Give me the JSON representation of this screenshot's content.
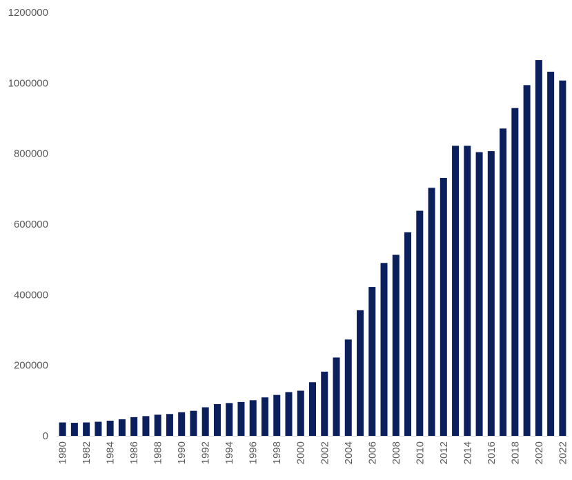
{
  "chart_data": {
    "type": "bar",
    "title": "",
    "xlabel": "",
    "ylabel": "",
    "ylim": [
      0,
      1200000
    ],
    "yticks": [
      "0",
      "200000",
      "400000",
      "600000",
      "800000",
      "1000000",
      "1200000"
    ],
    "grid": false,
    "legend": "none",
    "bar_color": "#0b1f5c",
    "tick_color": "#595959",
    "categories": [
      "1980",
      "1981",
      "1982",
      "1983",
      "1984",
      "1985",
      "1986",
      "1987",
      "1988",
      "1989",
      "1990",
      "1991",
      "1992",
      "1993",
      "1994",
      "1995",
      "1996",
      "1997",
      "1998",
      "1999",
      "2000",
      "2001",
      "2002",
      "2003",
      "2004",
      "2005",
      "2006",
      "2007",
      "2008",
      "2009",
      "2010",
      "2011",
      "2012",
      "2013",
      "2014",
      "2015",
      "2016",
      "2017",
      "2018",
      "2019",
      "2020",
      "2021",
      "2022"
    ],
    "x_tick_labels": [
      "1980",
      "",
      "1982",
      "",
      "1984",
      "",
      "1986",
      "",
      "1988",
      "",
      "1990",
      "",
      "1992",
      "",
      "1994",
      "",
      "1996",
      "",
      "1998",
      "",
      "2000",
      "",
      "2002",
      "",
      "2004",
      "",
      "2006",
      "",
      "2008",
      "",
      "2010",
      "",
      "2012",
      "",
      "2014",
      "",
      "2016",
      "",
      "2018",
      "",
      "2020",
      "",
      "2022"
    ],
    "values": [
      38000,
      37000,
      38000,
      40000,
      43000,
      47000,
      53000,
      56000,
      60000,
      62000,
      67000,
      71000,
      81000,
      90000,
      93000,
      96000,
      101000,
      109000,
      116000,
      124000,
      128000,
      152000,
      182000,
      222000,
      273000,
      356000,
      422000,
      490000,
      513000,
      577000,
      638000,
      703000,
      731000,
      822000,
      822000,
      804000,
      807000,
      871000,
      929000,
      994000,
      1065000,
      1032000,
      1007000
    ]
  }
}
